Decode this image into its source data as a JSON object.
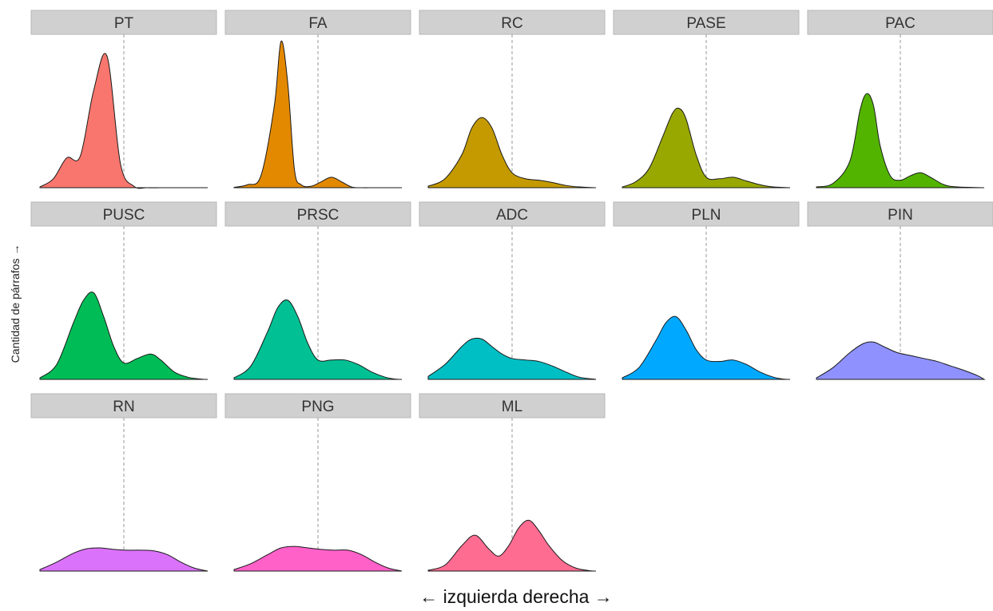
{
  "chart_data": {
    "type": "area",
    "layout": "small-multiples",
    "xlabel": "← izquierda  derecha →",
    "ylabel": "Cantidad de párrafos →",
    "x_axis_ticks_shown": false,
    "y_axis_ticks_shown": false,
    "grid": false,
    "xlim": [
      0,
      1
    ],
    "reference_line_x": 0.5,
    "panels": [
      {
        "name": "PT",
        "color": "#F8766D",
        "x": [
          0,
          0.08,
          0.16,
          0.24,
          0.32,
          0.4,
          0.48,
          0.56,
          0.64,
          0.72,
          0.8,
          0.88,
          0.96,
          1.0
        ],
        "density": [
          0.005,
          0.06,
          0.2,
          0.21,
          0.65,
          0.88,
          0.16,
          0.01,
          0,
          0,
          0,
          0,
          0,
          0
        ]
      },
      {
        "name": "FA",
        "color": "#E38900",
        "x": [
          0,
          0.08,
          0.16,
          0.24,
          0.28,
          0.32,
          0.36,
          0.4,
          0.46,
          0.52,
          0.58,
          0.64,
          0.7,
          0.76,
          0.84,
          1.0
        ],
        "density": [
          0.002,
          0.02,
          0.08,
          0.55,
          0.98,
          0.7,
          0.12,
          0.02,
          0.01,
          0.04,
          0.07,
          0.04,
          0.005,
          0,
          0,
          0
        ]
      },
      {
        "name": "RC",
        "color": "#C49A00",
        "x": [
          0,
          0.1,
          0.2,
          0.26,
          0.32,
          0.38,
          0.44,
          0.5,
          0.58,
          0.66,
          0.74,
          0.82,
          0.9,
          1.0
        ],
        "density": [
          0.01,
          0.06,
          0.22,
          0.4,
          0.47,
          0.4,
          0.22,
          0.1,
          0.06,
          0.05,
          0.035,
          0.015,
          0.005,
          0
        ]
      },
      {
        "name": "PASE",
        "color": "#99A800",
        "x": [
          0,
          0.08,
          0.16,
          0.24,
          0.3,
          0.34,
          0.38,
          0.44,
          0.5,
          0.58,
          0.66,
          0.74,
          0.82,
          0.9,
          1.0
        ],
        "density": [
          0.005,
          0.04,
          0.13,
          0.34,
          0.5,
          0.53,
          0.46,
          0.22,
          0.07,
          0.06,
          0.07,
          0.045,
          0.02,
          0.005,
          0
        ]
      },
      {
        "name": "PAC",
        "color": "#53B400",
        "x": [
          0,
          0.1,
          0.2,
          0.26,
          0.3,
          0.34,
          0.38,
          0.44,
          0.5,
          0.56,
          0.62,
          0.68,
          0.76,
          0.84,
          1.0
        ],
        "density": [
          0.005,
          0.03,
          0.18,
          0.52,
          0.63,
          0.55,
          0.28,
          0.08,
          0.05,
          0.08,
          0.1,
          0.07,
          0.02,
          0.005,
          0
        ]
      },
      {
        "name": "PUSC",
        "color": "#00BC56",
        "x": [
          0,
          0.1,
          0.2,
          0.26,
          0.32,
          0.38,
          0.44,
          0.5,
          0.58,
          0.66,
          0.72,
          0.8,
          0.88,
          0.96,
          1.0
        ],
        "density": [
          0.01,
          0.1,
          0.38,
          0.53,
          0.58,
          0.42,
          0.22,
          0.11,
          0.14,
          0.17,
          0.13,
          0.05,
          0.015,
          0.002,
          0
        ]
      },
      {
        "name": "PRSC",
        "color": "#00C094",
        "x": [
          0,
          0.1,
          0.2,
          0.26,
          0.32,
          0.38,
          0.44,
          0.5,
          0.58,
          0.66,
          0.74,
          0.82,
          0.9,
          0.96,
          1.0
        ],
        "density": [
          0.01,
          0.09,
          0.32,
          0.48,
          0.53,
          0.42,
          0.24,
          0.13,
          0.13,
          0.13,
          0.1,
          0.05,
          0.015,
          0.002,
          0
        ]
      },
      {
        "name": "ADC",
        "color": "#00BFC4",
        "x": [
          0,
          0.1,
          0.2,
          0.26,
          0.32,
          0.38,
          0.44,
          0.5,
          0.58,
          0.66,
          0.74,
          0.82,
          0.9,
          1.0
        ],
        "density": [
          0.02,
          0.1,
          0.22,
          0.27,
          0.27,
          0.22,
          0.17,
          0.14,
          0.13,
          0.12,
          0.09,
          0.05,
          0.015,
          0
        ]
      },
      {
        "name": "PLN",
        "color": "#00A9FF",
        "x": [
          0,
          0.1,
          0.2,
          0.26,
          0.32,
          0.38,
          0.44,
          0.5,
          0.58,
          0.66,
          0.74,
          0.82,
          0.9,
          0.96,
          1.0
        ],
        "density": [
          0.01,
          0.08,
          0.26,
          0.38,
          0.42,
          0.33,
          0.2,
          0.13,
          0.12,
          0.13,
          0.1,
          0.05,
          0.015,
          0.002,
          0
        ]
      },
      {
        "name": "PIN",
        "color": "#8F91FF",
        "x": [
          0,
          0.1,
          0.2,
          0.28,
          0.34,
          0.4,
          0.48,
          0.56,
          0.64,
          0.72,
          0.8,
          0.88,
          0.96,
          1.0
        ],
        "density": [
          0.01,
          0.08,
          0.18,
          0.24,
          0.25,
          0.22,
          0.18,
          0.16,
          0.14,
          0.12,
          0.09,
          0.06,
          0.025,
          0
        ]
      },
      {
        "name": "RN",
        "color": "#DB72FB",
        "x": [
          0,
          0.1,
          0.2,
          0.28,
          0.36,
          0.44,
          0.52,
          0.6,
          0.68,
          0.76,
          0.84,
          0.92,
          1.0
        ],
        "density": [
          0.01,
          0.06,
          0.12,
          0.15,
          0.155,
          0.145,
          0.14,
          0.14,
          0.135,
          0.11,
          0.06,
          0.02,
          0
        ]
      },
      {
        "name": "PNG",
        "color": "#FF61C9",
        "x": [
          0,
          0.1,
          0.2,
          0.28,
          0.36,
          0.44,
          0.52,
          0.6,
          0.68,
          0.76,
          0.84,
          0.92,
          1.0
        ],
        "density": [
          0.01,
          0.05,
          0.11,
          0.155,
          0.165,
          0.155,
          0.145,
          0.14,
          0.14,
          0.11,
          0.06,
          0.02,
          0
        ]
      },
      {
        "name": "ML",
        "color": "#FF6C91",
        "x": [
          0,
          0.1,
          0.2,
          0.28,
          0.36,
          0.42,
          0.48,
          0.54,
          0.6,
          0.66,
          0.72,
          0.8,
          0.88,
          0.96,
          1.0
        ],
        "density": [
          0.005,
          0.04,
          0.17,
          0.24,
          0.15,
          0.1,
          0.17,
          0.29,
          0.34,
          0.27,
          0.17,
          0.07,
          0.02,
          0.003,
          0
        ]
      }
    ]
  }
}
